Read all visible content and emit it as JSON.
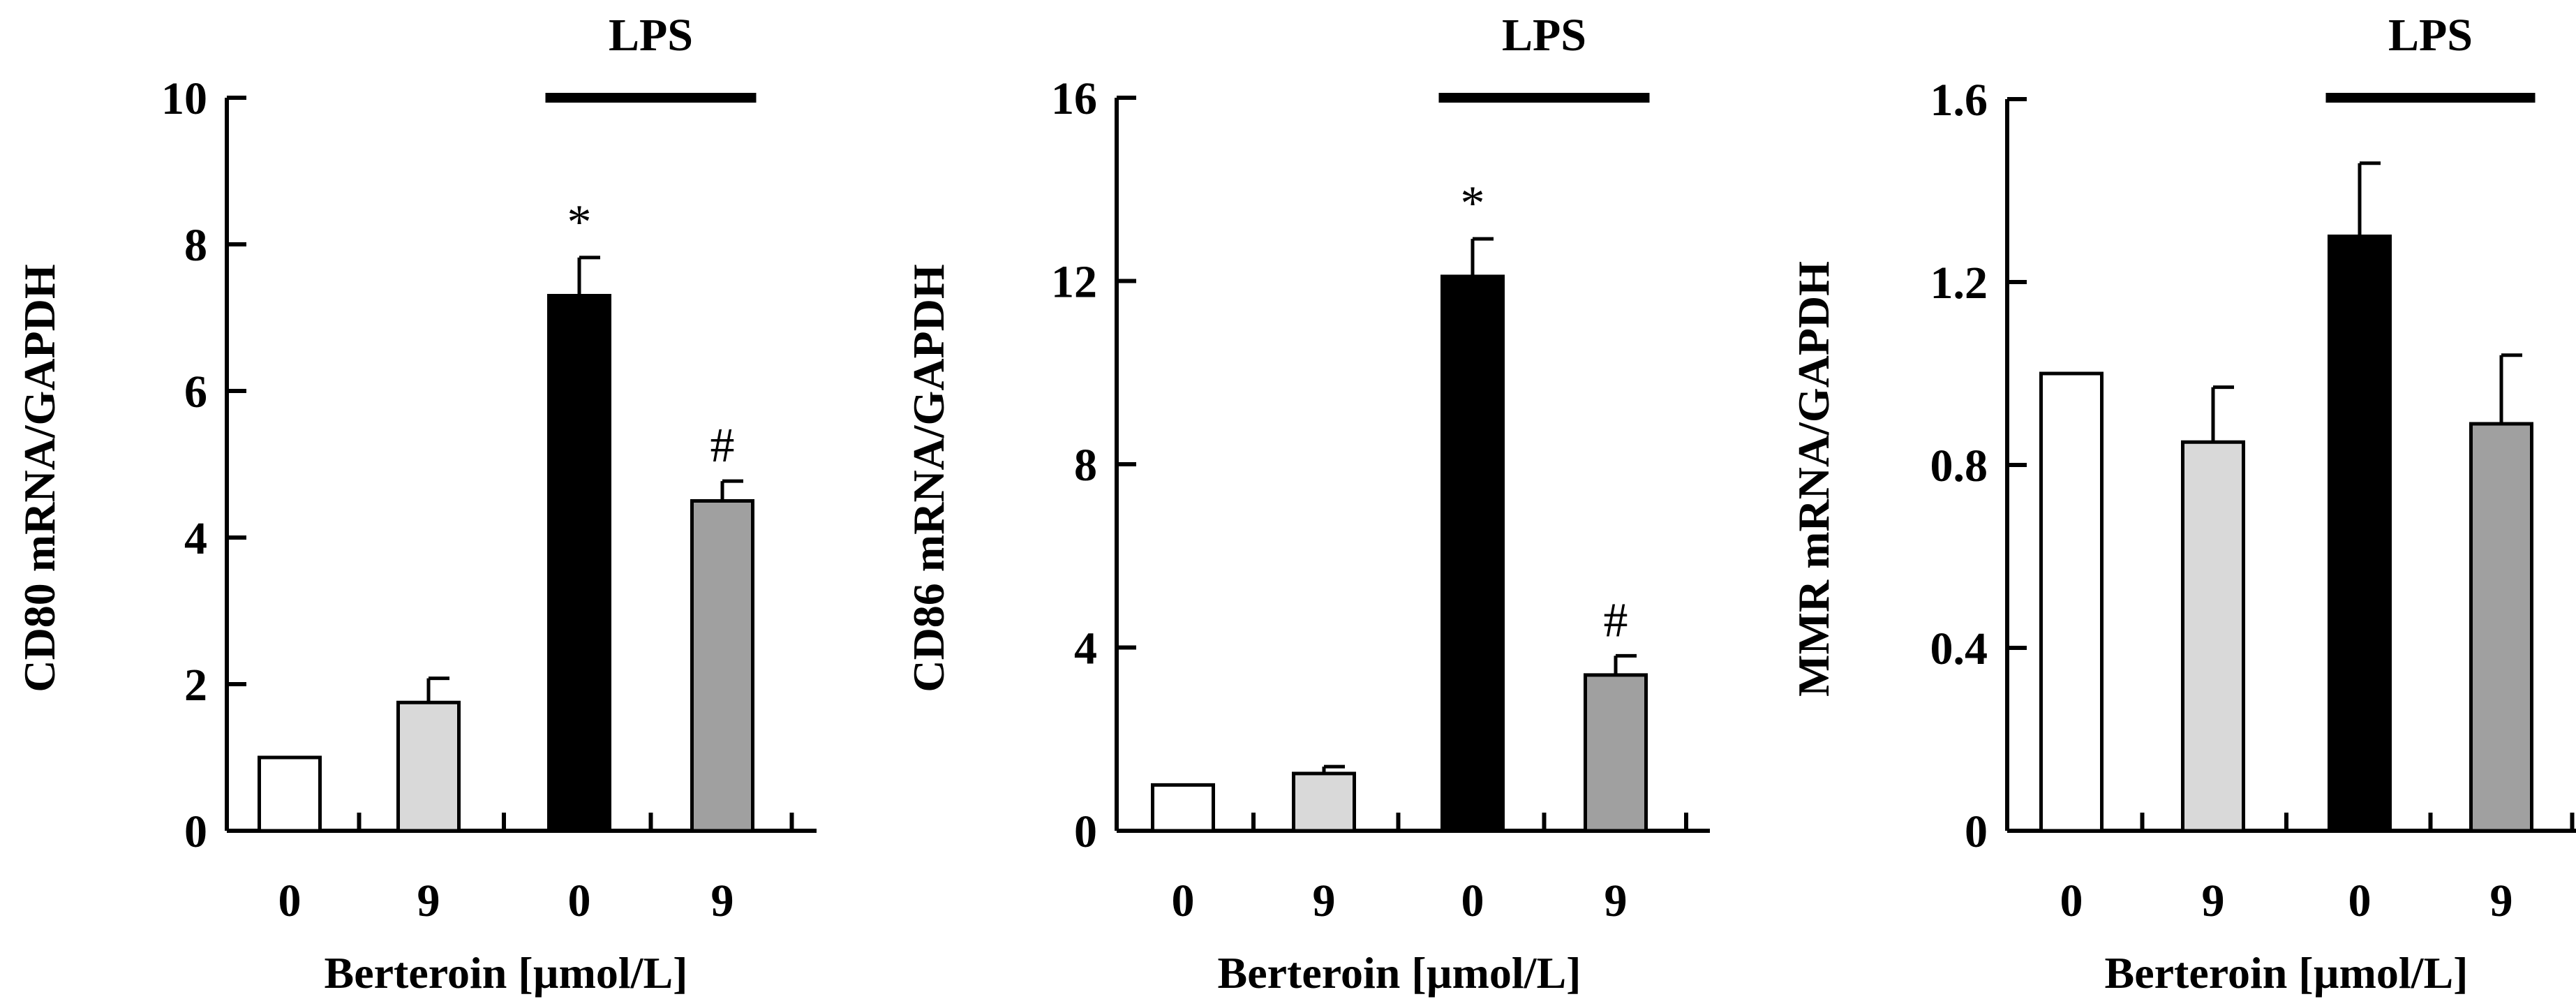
{
  "chart_data": [
    {
      "type": "bar",
      "title": "",
      "xlabel": "Berteroin [µmol/L]",
      "ylabel": "CD80 mRNA/GAPDH",
      "categories": [
        "0",
        "9",
        "0",
        "9"
      ],
      "values": [
        1.0,
        1.75,
        7.3,
        4.5
      ],
      "errors": [
        0,
        0.33,
        0.52,
        0.27
      ],
      "bar_colors": [
        "#ffffff",
        "#d9d9d9",
        "#000000",
        "#a0a0a0"
      ],
      "markers": [
        "",
        "",
        "*",
        "#"
      ],
      "ylim": [
        0,
        10
      ],
      "yticks": [
        0,
        2,
        4,
        6,
        8,
        10
      ],
      "ytick_labels": [
        "0",
        "2",
        "4",
        "6",
        "8",
        "10"
      ],
      "annotation": {
        "text": "LPS",
        "bars": [
          2,
          3
        ]
      }
    },
    {
      "type": "bar",
      "title": "",
      "xlabel": "Berteroin [µmol/L]",
      "ylabel": "CD86 mRNA/GAPDH",
      "categories": [
        "0",
        "9",
        "0",
        "9"
      ],
      "values": [
        1.0,
        1.25,
        12.1,
        3.4
      ],
      "errors": [
        0,
        0.15,
        0.82,
        0.42
      ],
      "bar_colors": [
        "#ffffff",
        "#d9d9d9",
        "#000000",
        "#a0a0a0"
      ],
      "markers": [
        "",
        "",
        "*",
        "#"
      ],
      "ylim": [
        0,
        16
      ],
      "yticks": [
        0,
        4,
        8,
        12,
        16
      ],
      "ytick_labels": [
        "0",
        "4",
        "8",
        "12",
        "16"
      ],
      "annotation": {
        "text": "LPS",
        "bars": [
          2,
          3
        ]
      }
    },
    {
      "type": "bar",
      "title": "",
      "xlabel": "Berteroin [µmol/L]",
      "ylabel": "MMR mRNA/GAPDH",
      "categories": [
        "0",
        "9",
        "0",
        "9"
      ],
      "values": [
        1.0,
        0.85,
        1.3,
        0.89
      ],
      "errors": [
        0,
        0.12,
        0.16,
        0.15
      ],
      "bar_colors": [
        "#ffffff",
        "#d9d9d9",
        "#000000",
        "#a0a0a0"
      ],
      "markers": [
        "",
        "",
        "",
        ""
      ],
      "ylim": [
        0,
        1.6
      ],
      "yticks": [
        0,
        0.4,
        0.8,
        1.2,
        1.6
      ],
      "ytick_labels": [
        "0",
        "0.4",
        "0.8",
        "1.2",
        "1.6"
      ],
      "annotation": {
        "text": "LPS",
        "bars": [
          2,
          3
        ]
      }
    }
  ]
}
